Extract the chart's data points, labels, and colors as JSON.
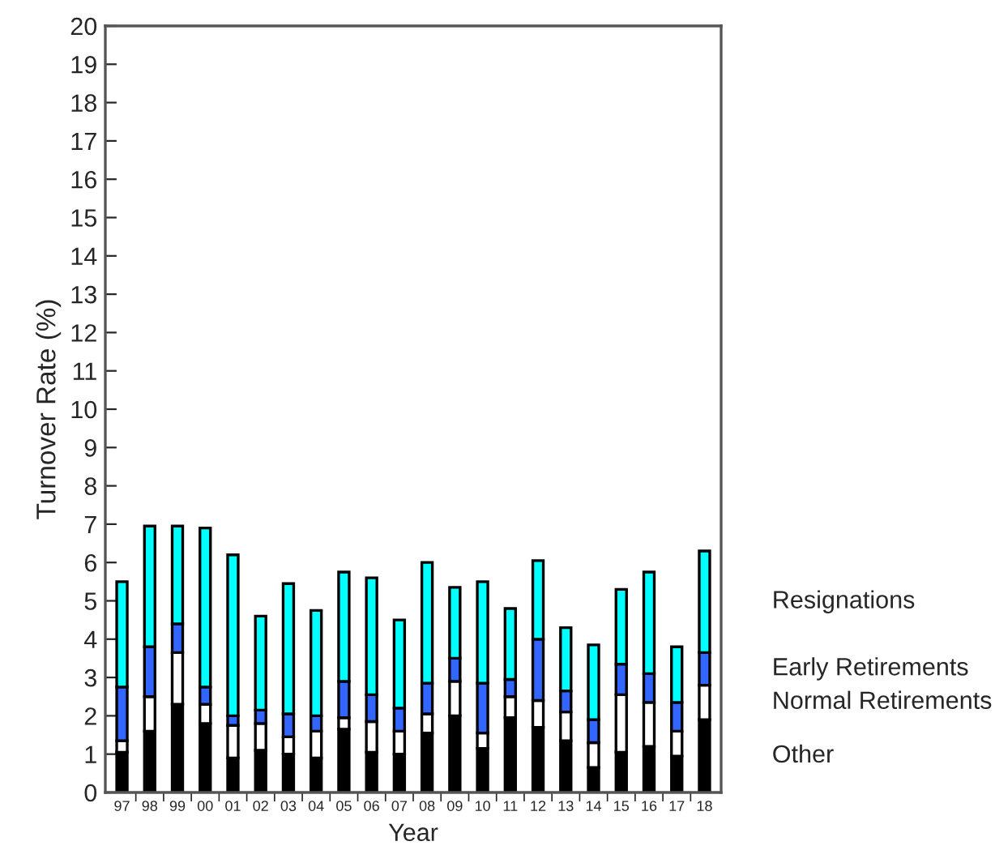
{
  "chart_data": {
    "type": "bar",
    "stacked": true,
    "xlabel": "Year",
    "ylabel": "Turnover Rate (%)",
    "categories": [
      "97",
      "98",
      "99",
      "00",
      "01",
      "02",
      "03",
      "04",
      "05",
      "06",
      "07",
      "08",
      "09",
      "10",
      "11",
      "12",
      "13",
      "14",
      "15",
      "16",
      "17",
      "18"
    ],
    "series": [
      {
        "name": "Other",
        "color": "#000000",
        "values": [
          1.05,
          1.6,
          2.3,
          1.8,
          0.9,
          1.1,
          1.0,
          0.9,
          1.65,
          1.05,
          1.0,
          1.55,
          2.0,
          1.15,
          1.95,
          1.7,
          1.35,
          0.65,
          1.05,
          1.2,
          0.95,
          1.9
        ]
      },
      {
        "name": "Normal Retirements",
        "color": "#ffffff",
        "values": [
          0.3,
          0.9,
          1.35,
          0.5,
          0.85,
          0.7,
          0.45,
          0.7,
          0.3,
          0.8,
          0.6,
          0.5,
          0.9,
          0.4,
          0.55,
          0.7,
          0.75,
          0.65,
          1.5,
          1.15,
          0.65,
          0.9
        ]
      },
      {
        "name": "Early Retirements",
        "color": "#3366ff",
        "values": [
          1.4,
          1.3,
          0.75,
          0.45,
          0.25,
          0.35,
          0.6,
          0.4,
          0.95,
          0.7,
          0.6,
          0.8,
          0.6,
          1.3,
          0.45,
          1.6,
          0.55,
          0.6,
          0.8,
          0.75,
          0.75,
          0.85
        ]
      },
      {
        "name": "Resignations",
        "color": "#00ffff",
        "values": [
          2.75,
          3.15,
          2.55,
          4.15,
          4.2,
          2.45,
          3.4,
          2.75,
          2.85,
          3.05,
          2.3,
          3.15,
          1.85,
          2.65,
          1.85,
          2.05,
          1.65,
          1.95,
          1.95,
          2.65,
          1.45,
          2.65
        ]
      }
    ],
    "ylim": [
      0,
      20
    ],
    "yticks": [
      0,
      1,
      2,
      3,
      4,
      5,
      6,
      7,
      8,
      9,
      10,
      11,
      12,
      13,
      14,
      15,
      16,
      17,
      18,
      19,
      20
    ],
    "grid": false,
    "legend": false
  }
}
